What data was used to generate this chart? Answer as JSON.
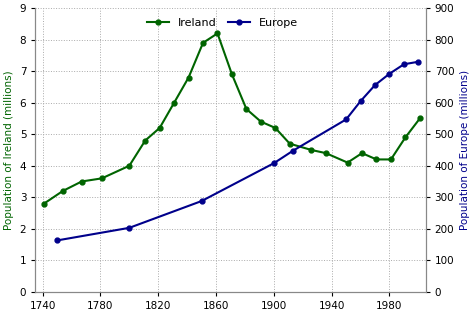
{
  "ireland_years": [
    1741,
    1754,
    1767,
    1781,
    1800,
    1811,
    1821,
    1831,
    1841,
    1851,
    1861,
    1871,
    1881,
    1891,
    1901,
    1911,
    1926,
    1936,
    1951,
    1961,
    1971,
    1981,
    1991,
    2001
  ],
  "ireland_pop": [
    2.8,
    3.2,
    3.5,
    3.6,
    4.0,
    4.8,
    5.2,
    6.0,
    6.8,
    7.9,
    8.2,
    6.9,
    5.8,
    5.4,
    5.2,
    4.7,
    4.5,
    4.4,
    4.1,
    4.4,
    4.2,
    4.2,
    4.9,
    5.5
  ],
  "europe_years": [
    1750,
    1800,
    1850,
    1900,
    1913,
    1950,
    1960,
    1970,
    1980,
    1990,
    2000
  ],
  "europe_pop": [
    163,
    203,
    288,
    408,
    447,
    547,
    605,
    656,
    692,
    722,
    730
  ],
  "ireland_color": "#006400",
  "europe_color": "#00008B",
  "ylabel_left": "Population of Ireland (millions)",
  "ylabel_right": "Population of Europe (millions)",
  "xlim": [
    1735,
    2005
  ],
  "ylim_left": [
    0,
    9
  ],
  "ylim_right": [
    0,
    900
  ],
  "xticks": [
    1740,
    1780,
    1820,
    1860,
    1900,
    1940,
    1980
  ],
  "yticks_left": [
    0,
    1,
    2,
    3,
    4,
    5,
    6,
    7,
    8,
    9
  ],
  "yticks_right": [
    0,
    100,
    200,
    300,
    400,
    500,
    600,
    700,
    800,
    900
  ],
  "legend_ireland": "Ireland",
  "legend_europe": "Europe",
  "bg_color": "#ffffff",
  "grid_color": "#aaaaaa"
}
